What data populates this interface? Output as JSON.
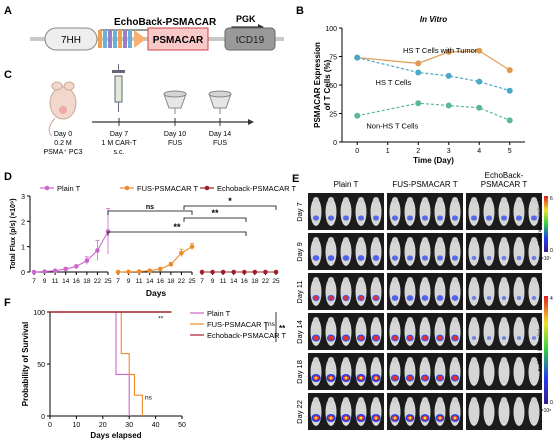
{
  "panel_letters": {
    "a": "A",
    "b": "B",
    "c": "C",
    "d": "D",
    "e": "E",
    "f": "F"
  },
  "colors": {
    "plain": "#cc66cc",
    "fus": "#ee8a2e",
    "echoback": "#a0202a",
    "hs_tumor": "#e09a50",
    "hs": "#4aa8c8",
    "non_hs": "#5cb89a",
    "construct_ps": "#f4c4c4",
    "construct_red": "#d44"
  },
  "panel_a": {
    "title": "EchoBack-PSMACAR",
    "promoter": "PGK",
    "box_7hh": "7HH",
    "box_psmacar": "PSMACAR",
    "box_tcd19": "tCD19"
  },
  "panel_c": {
    "steps": [
      {
        "day": "Day 0",
        "detail1": "0.2 M",
        "detail2": "PSMA⁺ PC3"
      },
      {
        "day": "Day 7",
        "detail1": "1 M CAR-T",
        "detail2": "s.c."
      },
      {
        "day": "Day 10",
        "detail1": "FUS",
        "detail2": ""
      },
      {
        "day": "Day 14",
        "detail1": "FUS",
        "detail2": ""
      }
    ]
  },
  "panel_e": {
    "columns": [
      "Plain T",
      "FUS-PSMACAR T",
      "EchoBack-\nPSMACAR T"
    ],
    "rows": [
      "Day 7",
      "Day 9",
      "Day 11",
      "Day 14",
      "Day 18",
      "Day 22"
    ],
    "scale_top": {
      "label": "Radiance (p/s/cm²/sr)",
      "max": "6",
      "min": "0.5",
      "unit": "×10⁷"
    },
    "scale_bottom": {
      "label": "Radiance (p/s/cm²/sr)",
      "max": "4",
      "min": "0.5",
      "unit": "×10⁸"
    },
    "signal_rows_plain": [
      0.4,
      0.5,
      0.6,
      0.8,
      1.0,
      1.0
    ],
    "signal_rows_fus": [
      0.4,
      0.4,
      0.5,
      0.7,
      0.8,
      0.95
    ],
    "signal_rows_echo": [
      0.4,
      0.15,
      0.1,
      0.05,
      0.0,
      0.0
    ]
  },
  "chart_data": [
    {
      "panel": "B",
      "type": "line",
      "title": "In Vitro",
      "xlabel": "Time (Day)",
      "ylabel": "PSMACAR Expression of T Cells (%)",
      "xlim": [
        -0.5,
        5.5
      ],
      "ylim": [
        0,
        100
      ],
      "x_ticks": [
        "0",
        "1",
        "2",
        "3",
        "4",
        "5"
      ],
      "y_ticks": [
        "0",
        "25",
        "50",
        "75",
        "100"
      ],
      "series": [
        {
          "name": "HS T Cells with Tumor",
          "x": [
            0,
            2,
            3,
            4,
            5
          ],
          "values": [
            74,
            69,
            79,
            80,
            63
          ],
          "style": "solid"
        },
        {
          "name": "HS T Cells",
          "x": [
            0,
            2,
            3,
            4,
            5
          ],
          "values": [
            74,
            61,
            58,
            53,
            45
          ],
          "style": "dashed"
        },
        {
          "name": "Non-HS T Cells",
          "x": [
            0,
            2,
            3,
            4,
            5
          ],
          "values": [
            23,
            34,
            32,
            30,
            19
          ],
          "style": "dashed"
        }
      ]
    },
    {
      "panel": "D",
      "type": "line",
      "xlabel": "Days",
      "ylabel": "Total Flux (p/s) (×10⁹)",
      "ylim": [
        0,
        3
      ],
      "y_ticks": [
        "0",
        "1",
        "2",
        "3"
      ],
      "x_ticks": [
        "7",
        "9",
        "11",
        "14",
        "16",
        "18",
        "22",
        "25"
      ],
      "legend": [
        "Plain T",
        "FUS-PSMACAR T",
        "Echoback-PSMACAR T"
      ],
      "series": [
        {
          "name": "Plain T",
          "values": [
            0.0,
            0.02,
            0.05,
            0.12,
            0.22,
            0.45,
            0.85,
            1.6
          ],
          "errors": [
            0,
            0.01,
            0.02,
            0.04,
            0.06,
            0.15,
            0.4,
            0.9
          ]
        },
        {
          "name": "FUS-PSMACAR T",
          "values": [
            0.0,
            0.01,
            0.02,
            0.05,
            0.12,
            0.3,
            0.75,
            1.0
          ],
          "errors": [
            0,
            0.01,
            0.01,
            0.02,
            0.04,
            0.08,
            0.15,
            0.12
          ]
        },
        {
          "name": "Echoback-PSMACAR T",
          "values": [
            0.0,
            0.0,
            0.0,
            0.0,
            0.0,
            0.0,
            0.0,
            0.0
          ],
          "errors": [
            0,
            0,
            0,
            0,
            0,
            0,
            0,
            0
          ]
        }
      ],
      "annotations": [
        "ns",
        "*",
        "**",
        "**"
      ]
    },
    {
      "panel": "F",
      "type": "line",
      "xlabel": "Days elapsed",
      "ylabel": "Probability of Survival",
      "xlim": [
        0,
        50
      ],
      "ylim": [
        0,
        100
      ],
      "x_ticks": [
        "0",
        "10",
        "20",
        "30",
        "40",
        "50"
      ],
      "y_ticks": [
        "0",
        "50",
        "100"
      ],
      "series": [
        {
          "name": "Plain T",
          "steps": [
            [
              0,
              100
            ],
            [
              25,
              100
            ],
            [
              25,
              40
            ],
            [
              30,
              40
            ],
            [
              30,
              0
            ]
          ]
        },
        {
          "name": "FUS-PSMACAR T",
          "steps": [
            [
              0,
              100
            ],
            [
              27,
              100
            ],
            [
              27,
              60
            ],
            [
              30,
              60
            ],
            [
              30,
              40
            ],
            [
              32,
              40
            ],
            [
              32,
              20
            ],
            [
              35,
              20
            ],
            [
              35,
              0
            ]
          ]
        },
        {
          "name": "Echoback-PSMACAR T",
          "steps": [
            [
              0,
              100
            ],
            [
              46,
              100
            ]
          ]
        }
      ],
      "legend": [
        "Plain T",
        "FUS-PSMACAR T",
        "Echoback-PSMACAR T"
      ],
      "annotations": [
        "ns",
        "**",
        "ns",
        "**"
      ]
    }
  ]
}
